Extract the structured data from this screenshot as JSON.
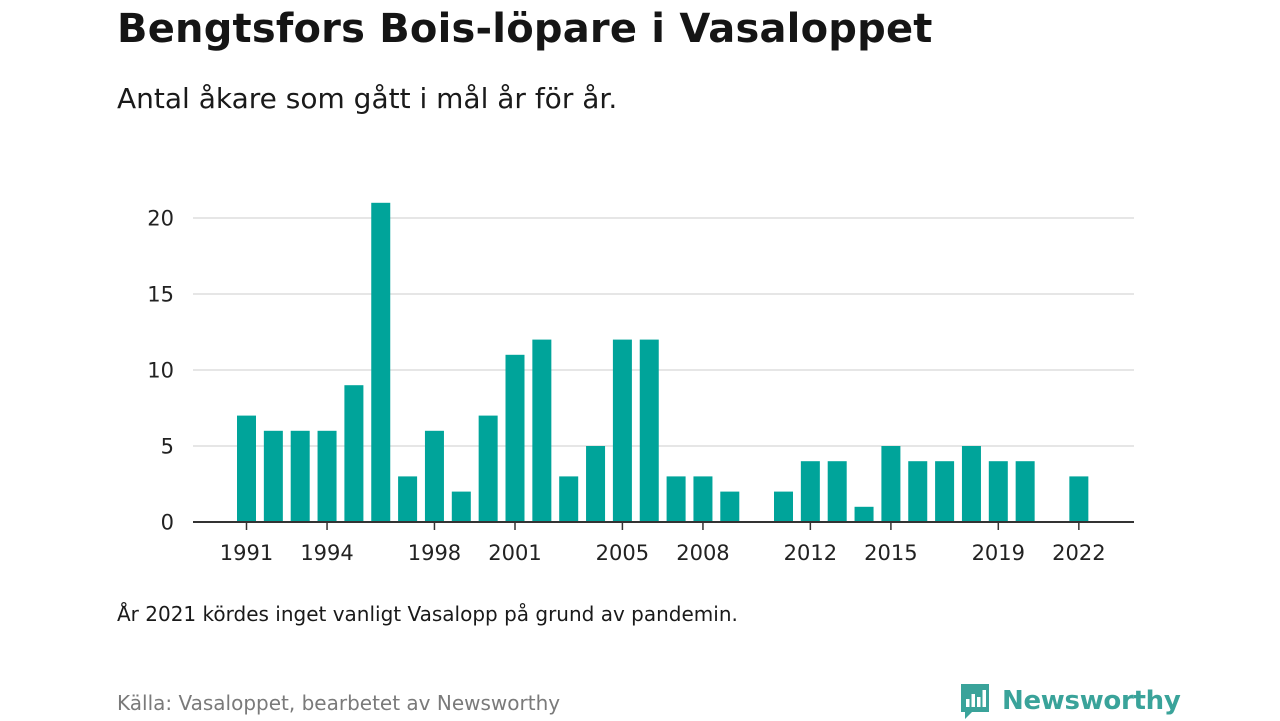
{
  "title": "Bengtsfors Bois-löpare i Vasaloppet",
  "subtitle": "Antal åkare som gått i mål år för år.",
  "note": "År 2021 kördes inget vanligt Vasalopp på grund av pandemin.",
  "source": "Källa: Vasaloppet, bearbetet av Newsworthy",
  "logo": {
    "text": "Newsworthy",
    "icon": "newsworthy-chart-bubble-icon"
  },
  "colors": {
    "bar": "#00a49a",
    "grid": "#dedede",
    "axis": "#333333",
    "logo": "#3aa39a"
  },
  "chart_data": {
    "type": "bar",
    "x": [
      1991,
      1992,
      1993,
      1994,
      1995,
      1996,
      1997,
      1998,
      1999,
      2000,
      2001,
      2002,
      2003,
      2004,
      2005,
      2006,
      2007,
      2008,
      2009,
      2010,
      2011,
      2012,
      2013,
      2014,
      2015,
      2016,
      2017,
      2018,
      2019,
      2020,
      2021,
      2022
    ],
    "values": [
      7,
      6,
      6,
      6,
      9,
      21,
      3,
      6,
      2,
      7,
      11,
      12,
      3,
      5,
      12,
      12,
      3,
      3,
      2,
      null,
      2,
      4,
      4,
      1,
      5,
      4,
      4,
      5,
      4,
      4,
      null,
      3
    ],
    "x_ticks": [
      1991,
      1994,
      1998,
      2001,
      2005,
      2008,
      2012,
      2015,
      2019,
      2022
    ],
    "y_ticks": [
      0,
      5,
      10,
      15,
      20
    ],
    "ylim": [
      0,
      21
    ],
    "grid": true,
    "xlabel": "",
    "ylabel": ""
  }
}
